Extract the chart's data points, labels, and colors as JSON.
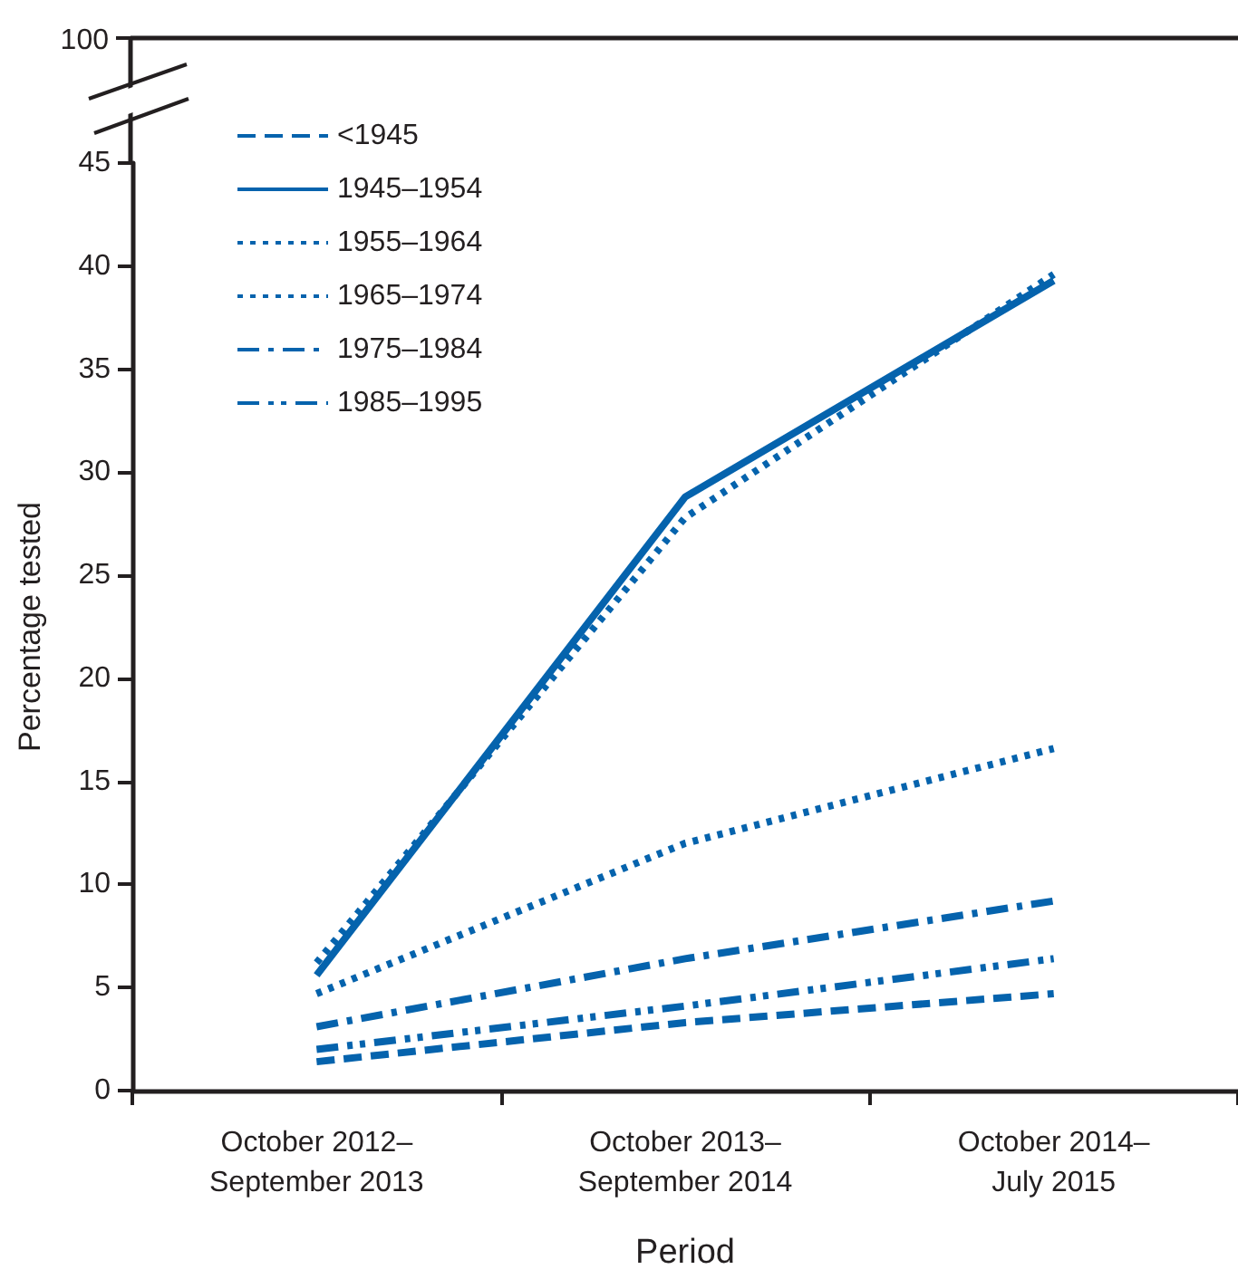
{
  "chart_data": {
    "type": "line",
    "xlabel": "Period",
    "ylabel": "Percentage tested",
    "categories": [
      "October 2012–September 2013",
      "October 2013–September 2014",
      "October 2014–July 2015"
    ],
    "series": [
      {
        "name": "<1945",
        "color": "#0563ad",
        "line_style": "dashed",
        "values": [
          1.4,
          3.3,
          4.7
        ]
      },
      {
        "name": "1945–1954",
        "color": "#0563ad",
        "line_style": "solid",
        "values": [
          5.6,
          28.8,
          39.3
        ]
      },
      {
        "name": "1955–1964",
        "color": "#0563ad",
        "line_style": "dotted",
        "values": [
          6.2,
          27.8,
          39.6
        ]
      },
      {
        "name": "1965–1974",
        "color": "#0563ad",
        "line_style": "dotted",
        "values": [
          4.7,
          12.0,
          16.6
        ]
      },
      {
        "name": "1975–1984",
        "color": "#0563ad",
        "line_style": "dashdot",
        "values": [
          3.1,
          6.4,
          9.2
        ]
      },
      {
        "name": "1985–1995",
        "color": "#0563ad",
        "line_style": "dashdotdot",
        "values": [
          2.0,
          4.1,
          6.4
        ]
      }
    ],
    "ylim": [
      0,
      45
    ],
    "yticks": [
      0,
      5,
      10,
      15,
      20,
      25,
      30,
      35,
      40,
      45
    ],
    "annotations": [
      "100"
    ],
    "grid": false,
    "legend": "top left",
    "marker": "none"
  }
}
